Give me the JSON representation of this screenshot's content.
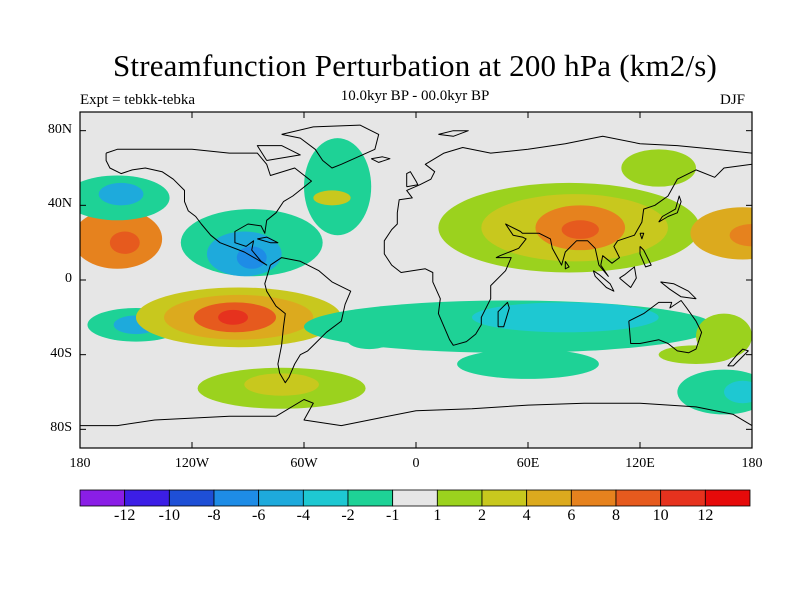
{
  "title": "Streamfunction Perturbation at 200 hPa (km2/s)",
  "experiment_label": "Expt = tebkk-tebka",
  "subtitle": "10.0kyr BP - 00.0kyr BP",
  "season": "DJF",
  "map": {
    "projection": "cylindrical equidistant",
    "lon_range": [
      -180,
      180
    ],
    "lat_range": [
      -90,
      90
    ],
    "lat_ticks": [
      {
        "lat": 80,
        "label": "80N"
      },
      {
        "lat": 40,
        "label": "40N"
      },
      {
        "lat": 0,
        "label": "0"
      },
      {
        "lat": -40,
        "label": "40S"
      },
      {
        "lat": -80,
        "label": "80S"
      }
    ],
    "lon_ticks": [
      {
        "lon": -180,
        "label": "180"
      },
      {
        "lon": -120,
        "label": "120W"
      },
      {
        "lon": -60,
        "label": "60W"
      },
      {
        "lon": 0,
        "label": "0"
      },
      {
        "lon": 60,
        "label": "60E"
      },
      {
        "lon": 120,
        "label": "120E"
      },
      {
        "lon": 180,
        "label": "180"
      }
    ],
    "background_color": "#e6e6e6"
  },
  "colorbar": {
    "colors": [
      "#8a1ee6",
      "#3c1ee6",
      "#1e4fd6",
      "#1e8ce6",
      "#1eaadc",
      "#1ec8d2",
      "#1ed296",
      "#e6e6e6",
      "#9bd21e",
      "#c8c81e",
      "#dcaa1e",
      "#e6821e",
      "#e65a1e",
      "#e6321e",
      "#e60a0a"
    ],
    "labels": [
      "-12",
      "-10",
      "-8",
      "-6",
      "-4",
      "-2",
      "-1",
      "1",
      "2",
      "4",
      "6",
      "8",
      "10",
      "12"
    ]
  },
  "features": [
    {
      "lon": -160,
      "lat": 22,
      "rx": 24,
      "ry": 16,
      "level": 11
    },
    {
      "lon": -156,
      "lat": 20,
      "rx": 8,
      "ry": 6,
      "level": 12
    },
    {
      "lon": -160,
      "lat": 44,
      "rx": 28,
      "ry": 12,
      "level": 6
    },
    {
      "lon": -158,
      "lat": 46,
      "rx": 12,
      "ry": 6,
      "level": 4
    },
    {
      "lon": -88,
      "lat": 20,
      "rx": 38,
      "ry": 18,
      "level": 6
    },
    {
      "lon": -92,
      "lat": 14,
      "rx": 20,
      "ry": 12,
      "level": 4
    },
    {
      "lon": -88,
      "lat": 12,
      "rx": 8,
      "ry": 6,
      "level": 3
    },
    {
      "lon": -150,
      "lat": -24,
      "rx": 26,
      "ry": 9,
      "level": 6
    },
    {
      "lon": -150,
      "lat": -24,
      "rx": 12,
      "ry": 5,
      "level": 4
    },
    {
      "lon": -95,
      "lat": -20,
      "rx": 55,
      "ry": 16,
      "level": 9
    },
    {
      "lon": -95,
      "lat": -20,
      "rx": 40,
      "ry": 12,
      "level": 10
    },
    {
      "lon": -97,
      "lat": -20,
      "rx": 22,
      "ry": 8,
      "level": 12
    },
    {
      "lon": -98,
      "lat": -20,
      "rx": 8,
      "ry": 4,
      "level": 13
    },
    {
      "lon": -72,
      "lat": -58,
      "rx": 45,
      "ry": 11,
      "level": 8
    },
    {
      "lon": -72,
      "lat": -56,
      "rx": 20,
      "ry": 6,
      "level": 9
    },
    {
      "lon": -42,
      "lat": 50,
      "rx": 18,
      "ry": 26,
      "level": 6
    },
    {
      "lon": -45,
      "lat": 44,
      "rx": 10,
      "ry": 4,
      "level": 9
    },
    {
      "lon": 82,
      "lat": 28,
      "rx": 70,
      "ry": 24,
      "level": 8
    },
    {
      "lon": 85,
      "lat": 28,
      "rx": 50,
      "ry": 18,
      "level": 9
    },
    {
      "lon": 88,
      "lat": 28,
      "rx": 24,
      "ry": 12,
      "level": 11
    },
    {
      "lon": 88,
      "lat": 27,
      "rx": 10,
      "ry": 5,
      "level": 12
    },
    {
      "lon": 130,
      "lat": 60,
      "rx": 20,
      "ry": 10,
      "level": 8
    },
    {
      "lon": 175,
      "lat": 25,
      "rx": 28,
      "ry": 14,
      "level": 10
    },
    {
      "lon": 180,
      "lat": 24,
      "rx": 12,
      "ry": 6,
      "level": 11
    },
    {
      "lon": 50,
      "lat": -25,
      "rx": 110,
      "ry": 14,
      "level": 6
    },
    {
      "lon": 80,
      "lat": -20,
      "rx": 50,
      "ry": 8,
      "level": 5
    },
    {
      "lon": 60,
      "lat": -45,
      "rx": 38,
      "ry": 8,
      "level": 6
    },
    {
      "lon": 165,
      "lat": -60,
      "rx": 25,
      "ry": 12,
      "level": 6
    },
    {
      "lon": 175,
      "lat": -60,
      "rx": 10,
      "ry": 6,
      "level": 5
    },
    {
      "lon": 165,
      "lat": -30,
      "rx": 15,
      "ry": 12,
      "level": 8
    },
    {
      "lon": 150,
      "lat": -40,
      "rx": 20,
      "ry": 5,
      "level": 8
    },
    {
      "lon": -25,
      "lat": -32,
      "rx": 12,
      "ry": 5,
      "level": 6
    }
  ],
  "coastlines": [
    {
      "name": "north-america",
      "points": [
        [
          -166,
          68
        ],
        [
          -160,
          70
        ],
        [
          -140,
          70
        ],
        [
          -120,
          70
        ],
        [
          -100,
          68
        ],
        [
          -85,
          68
        ],
        [
          -80,
          62
        ],
        [
          -78,
          56
        ],
        [
          -65,
          60
        ],
        [
          -56,
          53
        ],
        [
          -66,
          45
        ],
        [
          -71,
          42
        ],
        [
          -75,
          36
        ],
        [
          -80,
          32
        ],
        [
          -81,
          25
        ],
        [
          -83,
          29
        ],
        [
          -90,
          30
        ],
        [
          -97,
          26
        ],
        [
          -97,
          20
        ],
        [
          -91,
          18
        ],
        [
          -87,
          21
        ],
        [
          -88,
          16
        ],
        [
          -83,
          10
        ],
        [
          -80,
          8
        ],
        [
          -85,
          11
        ],
        [
          -92,
          15
        ],
        [
          -105,
          20
        ],
        [
          -110,
          24
        ],
        [
          -115,
          30
        ],
        [
          -118,
          34
        ],
        [
          -122,
          37
        ],
        [
          -124,
          42
        ],
        [
          -124,
          48
        ],
        [
          -130,
          54
        ],
        [
          -136,
          58
        ],
        [
          -145,
          60
        ],
        [
          -152,
          59
        ],
        [
          -158,
          57
        ],
        [
          -164,
          60
        ],
        [
          -166,
          64
        ],
        [
          -166,
          68
        ]
      ]
    },
    {
      "name": "greenland",
      "points": [
        [
          -72,
          78
        ],
        [
          -55,
          82
        ],
        [
          -30,
          83
        ],
        [
          -20,
          78
        ],
        [
          -22,
          70
        ],
        [
          -40,
          62
        ],
        [
          -45,
          60
        ],
        [
          -50,
          64
        ],
        [
          -54,
          70
        ],
        [
          -62,
          76
        ],
        [
          -72,
          78
        ]
      ]
    },
    {
      "name": "south-america",
      "points": [
        [
          -78,
          8
        ],
        [
          -72,
          12
        ],
        [
          -62,
          10
        ],
        [
          -52,
          5
        ],
        [
          -45,
          -1
        ],
        [
          -35,
          -6
        ],
        [
          -38,
          -13
        ],
        [
          -40,
          -22
        ],
        [
          -48,
          -28
        ],
        [
          -54,
          -34
        ],
        [
          -58,
          -38
        ],
        [
          -62,
          -40
        ],
        [
          -65,
          -45
        ],
        [
          -68,
          -52
        ],
        [
          -70,
          -55
        ],
        [
          -73,
          -50
        ],
        [
          -74,
          -45
        ],
        [
          -72,
          -35
        ],
        [
          -71,
          -25
        ],
        [
          -70,
          -18
        ],
        [
          -75,
          -14
        ],
        [
          -80,
          -6
        ],
        [
          -81,
          -2
        ],
        [
          -78,
          8
        ]
      ]
    },
    {
      "name": "eurasia-africa",
      "points": [
        [
          -10,
          36
        ],
        [
          -9,
          43
        ],
        [
          -2,
          44
        ],
        [
          -5,
          48
        ],
        [
          2,
          51
        ],
        [
          8,
          54
        ],
        [
          10,
          58
        ],
        [
          5,
          62
        ],
        [
          15,
          68
        ],
        [
          25,
          71
        ],
        [
          40,
          68
        ],
        [
          60,
          70
        ],
        [
          80,
          73
        ],
        [
          100,
          77
        ],
        [
          120,
          73
        ],
        [
          140,
          72
        ],
        [
          160,
          70
        ],
        [
          180,
          68
        ],
        [
          180,
          62
        ],
        [
          165,
          60
        ],
        [
          160,
          55
        ],
        [
          150,
          59
        ],
        [
          140,
          54
        ],
        [
          135,
          45
        ],
        [
          128,
          40
        ],
        [
          122,
          38
        ],
        [
          121,
          31
        ],
        [
          117,
          24
        ],
        [
          108,
          21
        ],
        [
          106,
          18
        ],
        [
          109,
          12
        ],
        [
          105,
          9
        ],
        [
          100,
          13
        ],
        [
          99,
          8
        ],
        [
          103,
          2
        ],
        [
          98,
          8
        ],
        [
          96,
          17
        ],
        [
          92,
          21
        ],
        [
          86,
          21
        ],
        [
          80,
          15
        ],
        [
          78,
          8
        ],
        [
          73,
          17
        ],
        [
          72,
          22
        ],
        [
          66,
          25
        ],
        [
          57,
          25
        ],
        [
          56,
          26
        ],
        [
          50,
          29
        ],
        [
          48,
          30
        ],
        [
          52,
          24
        ],
        [
          57,
          23
        ],
        [
          59,
          22
        ],
        [
          55,
          17
        ],
        [
          45,
          13
        ],
        [
          43,
          12
        ],
        [
          51,
          12
        ],
        [
          48,
          5
        ],
        [
          40,
          -3
        ],
        [
          40,
          -10
        ],
        [
          35,
          -20
        ],
        [
          35,
          -24
        ],
        [
          32,
          -29
        ],
        [
          27,
          -33
        ],
        [
          20,
          -35
        ],
        [
          18,
          -32
        ],
        [
          12,
          -18
        ],
        [
          13,
          -10
        ],
        [
          9,
          -1
        ],
        [
          9,
          4
        ],
        [
          5,
          6
        ],
        [
          -2,
          5
        ],
        [
          -8,
          4
        ],
        [
          -13,
          8
        ],
        [
          -17,
          14
        ],
        [
          -17,
          21
        ],
        [
          -13,
          27
        ],
        [
          -10,
          30
        ],
        [
          -10,
          36
        ]
      ]
    },
    {
      "name": "australia",
      "points": [
        [
          114,
          -22
        ],
        [
          122,
          -18
        ],
        [
          130,
          -12
        ],
        [
          137,
          -12
        ],
        [
          136,
          -15
        ],
        [
          142,
          -11
        ],
        [
          145,
          -15
        ],
        [
          150,
          -22
        ],
        [
          153,
          -28
        ],
        [
          150,
          -37
        ],
        [
          146,
          -39
        ],
        [
          140,
          -38
        ],
        [
          135,
          -34
        ],
        [
          130,
          -32
        ],
        [
          120,
          -34
        ],
        [
          115,
          -34
        ],
        [
          114,
          -22
        ]
      ]
    },
    {
      "name": "antarctica",
      "points": [
        [
          -180,
          -78
        ],
        [
          -160,
          -78
        ],
        [
          -140,
          -75
        ],
        [
          -100,
          -73
        ],
        [
          -75,
          -73
        ],
        [
          -60,
          -64
        ],
        [
          -55,
          -66
        ],
        [
          -60,
          -75
        ],
        [
          -40,
          -78
        ],
        [
          -20,
          -74
        ],
        [
          0,
          -70
        ],
        [
          30,
          -69
        ],
        [
          60,
          -67
        ],
        [
          90,
          -66
        ],
        [
          120,
          -66
        ],
        [
          150,
          -68
        ],
        [
          170,
          -72
        ],
        [
          180,
          -78
        ]
      ]
    },
    {
      "name": "madagascar",
      "points": [
        [
          44,
          -25
        ],
        [
          47,
          -25
        ],
        [
          50,
          -15
        ],
        [
          49,
          -12
        ],
        [
          44,
          -17
        ],
        [
          44,
          -25
        ]
      ]
    },
    {
      "name": "uk",
      "points": [
        [
          -5,
          50
        ],
        [
          1,
          51
        ],
        [
          0,
          53
        ],
        [
          -3,
          58
        ],
        [
          -5,
          57
        ],
        [
          -5,
          50
        ]
      ]
    },
    {
      "name": "japan",
      "points": [
        [
          130,
          31
        ],
        [
          135,
          34
        ],
        [
          140,
          36
        ],
        [
          142,
          42
        ],
        [
          141,
          45
        ],
        [
          139,
          38
        ],
        [
          132,
          34
        ],
        [
          130,
          31
        ]
      ]
    },
    {
      "name": "new-zealand",
      "points": [
        [
          167,
          -46
        ],
        [
          172,
          -40
        ],
        [
          175,
          -37
        ],
        [
          178,
          -38
        ],
        [
          174,
          -42
        ],
        [
          170,
          -46
        ],
        [
          167,
          -46
        ]
      ]
    },
    {
      "name": "borneo",
      "points": [
        [
          109,
          1
        ],
        [
          115,
          -4
        ],
        [
          118,
          1
        ],
        [
          117,
          7
        ],
        [
          112,
          3
        ],
        [
          109,
          1
        ]
      ]
    },
    {
      "name": "sumatra",
      "points": [
        [
          95,
          5
        ],
        [
          98,
          3
        ],
        [
          104,
          -2
        ],
        [
          106,
          -6
        ],
        [
          102,
          -4
        ],
        [
          96,
          2
        ],
        [
          95,
          5
        ]
      ]
    },
    {
      "name": "new-guinea",
      "points": [
        [
          131,
          -1
        ],
        [
          138,
          -2
        ],
        [
          146,
          -6
        ],
        [
          150,
          -10
        ],
        [
          142,
          -9
        ],
        [
          136,
          -5
        ],
        [
          131,
          -1
        ]
      ]
    },
    {
      "name": "iceland",
      "points": [
        [
          -24,
          65
        ],
        [
          -18,
          66
        ],
        [
          -14,
          65
        ],
        [
          -20,
          63
        ],
        [
          -24,
          65
        ]
      ]
    },
    {
      "name": "cuba",
      "points": [
        [
          -85,
          22
        ],
        [
          -80,
          23
        ],
        [
          -74,
          20
        ],
        [
          -78,
          20
        ],
        [
          -85,
          22
        ]
      ]
    },
    {
      "name": "baffin",
      "points": [
        [
          -80,
          64
        ],
        [
          -68,
          66
        ],
        [
          -62,
          67
        ],
        [
          -72,
          72
        ],
        [
          -85,
          72
        ],
        [
          -80,
          64
        ]
      ]
    },
    {
      "name": "philippines",
      "points": [
        [
          120,
          18
        ],
        [
          122,
          16
        ],
        [
          126,
          8
        ],
        [
          123,
          7
        ],
        [
          120,
          14
        ],
        [
          120,
          18
        ]
      ]
    },
    {
      "name": "sri-lanka",
      "points": [
        [
          80,
          10
        ],
        [
          82,
          7
        ],
        [
          80,
          6
        ],
        [
          80,
          10
        ]
      ]
    },
    {
      "name": "taiwan",
      "points": [
        [
          120,
          25
        ],
        [
          122,
          25
        ],
        [
          121,
          22
        ],
        [
          120,
          25
        ]
      ]
    },
    {
      "name": "svalbard",
      "points": [
        [
          12,
          78
        ],
        [
          20,
          80
        ],
        [
          28,
          80
        ],
        [
          20,
          77
        ],
        [
          12,
          78
        ]
      ]
    }
  ]
}
